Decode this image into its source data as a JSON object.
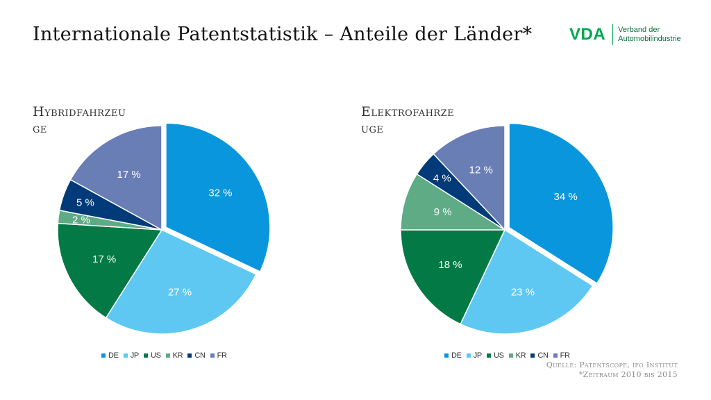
{
  "title": "Internationale Patentstatistik – Anteile der Länder*",
  "logo": {
    "mark": "VDA",
    "line1": "Verband der",
    "line2": "Automobilindustrie"
  },
  "colors": {
    "DE": "#0a96dc",
    "JP": "#5ec8f2",
    "US": "#037a45",
    "KR": "#5fab86",
    "CN": "#003a78",
    "FR": "#6a7eb6"
  },
  "chart_data": [
    {
      "type": "pie",
      "title": "Hybridfahrzeuge",
      "title_display": [
        "Hybridfahrzeu",
        "ge"
      ],
      "categories": [
        "DE",
        "JP",
        "US",
        "KR",
        "CN",
        "FR"
      ],
      "values": [
        32,
        27,
        17,
        2,
        5,
        17
      ],
      "labels": [
        "32 %",
        "27 %",
        "17 %",
        "2 %",
        "5 %",
        "17 %"
      ],
      "legend": {
        "position": "bottom",
        "entries": [
          "DE",
          "JP",
          "US",
          "KR",
          "CN",
          "FR"
        ]
      },
      "exploded_slice": "DE"
    },
    {
      "type": "pie",
      "title": "Elektrofahrzeuge",
      "title_display": [
        "Elektrofahrze",
        "uge"
      ],
      "categories": [
        "DE",
        "JP",
        "US",
        "KR",
        "CN",
        "FR"
      ],
      "values": [
        34,
        23,
        18,
        9,
        4,
        12
      ],
      "labels": [
        "34 %",
        "23 %",
        "18 %",
        "9 %",
        "4 %",
        "12 %"
      ],
      "legend": {
        "position": "bottom",
        "entries": [
          "DE",
          "JP",
          "US",
          "KR",
          "CN",
          "FR"
        ]
      },
      "exploded_slice": "DE"
    }
  ],
  "source": {
    "line1": "Quelle: Patentscope, ifo Institut",
    "line2": "*Zeitraum 2010 bis 2015"
  }
}
